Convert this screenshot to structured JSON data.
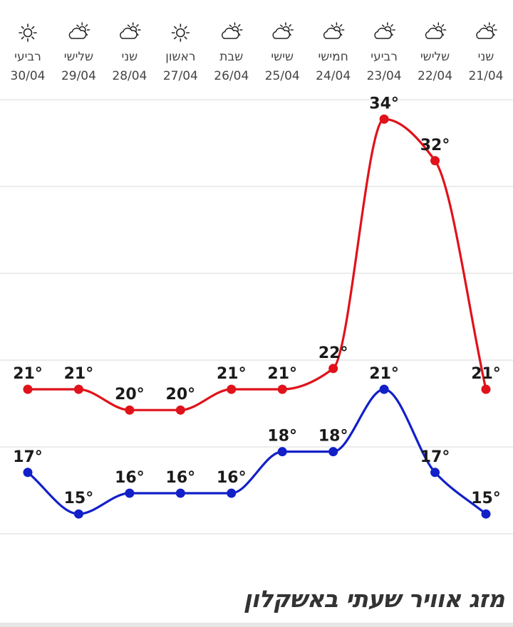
{
  "chart_data": {
    "type": "line",
    "direction": "rtl",
    "categories": [
      {
        "day": "שני",
        "date": "21/04",
        "icon": "partly-cloudy-icon"
      },
      {
        "day": "שלישי",
        "date": "22/04",
        "icon": "partly-cloudy-icon"
      },
      {
        "day": "רביעי",
        "date": "23/04",
        "icon": "partly-cloudy-icon"
      },
      {
        "day": "חמישי",
        "date": "24/04",
        "icon": "partly-cloudy-icon"
      },
      {
        "day": "שישי",
        "date": "25/04",
        "icon": "partly-cloudy-icon"
      },
      {
        "day": "שבת",
        "date": "26/04",
        "icon": "partly-cloudy-icon"
      },
      {
        "day": "ראשון",
        "date": "27/04",
        "icon": "sun-icon"
      },
      {
        "day": "שני",
        "date": "28/04",
        "icon": "partly-cloudy-icon"
      },
      {
        "day": "שלישי",
        "date": "29/04",
        "icon": "partly-cloudy-icon"
      },
      {
        "day": "רביעי",
        "date": "30/04",
        "icon": "sun-icon"
      }
    ],
    "series": [
      {
        "id": "max",
        "values": [
          21,
          32,
          34,
          22,
          21,
          21,
          20,
          20,
          21,
          21
        ],
        "color": "#e0121a"
      },
      {
        "id": "min",
        "values": [
          15,
          17,
          21,
          18,
          18,
          16,
          16,
          16,
          15,
          17
        ],
        "color": "#1220c8"
      }
    ],
    "value_suffix": "°",
    "ylim": [
      11,
      38
    ],
    "grid": true,
    "colors": {
      "grid": "#e6e6e6",
      "label": "#1a1a1a",
      "header_text": "#444444"
    }
  },
  "footer": {
    "title": "מזג אוויר שעתי באשקלון"
  }
}
